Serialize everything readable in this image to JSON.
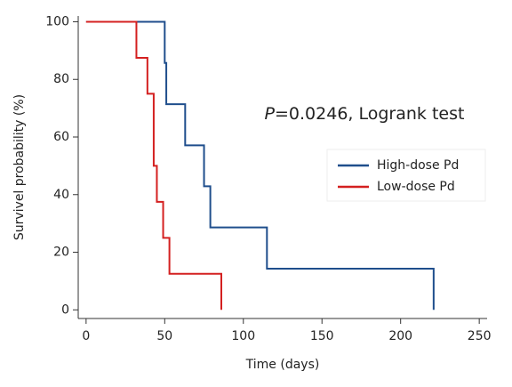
{
  "chart_data": {
    "type": "step",
    "annotation": {
      "italic": "P",
      "text": "=0.0246, Logrank test"
    },
    "xlabel": "Time (days)",
    "ylabel": "Survivel probability (%)",
    "xlim": [
      -5,
      255
    ],
    "xticks": [
      0,
      50,
      100,
      150,
      200,
      250
    ],
    "ylim": [
      -3,
      102
    ],
    "yticks": [
      0,
      20,
      40,
      60,
      80,
      100
    ],
    "legend": "right",
    "series": [
      {
        "name": "High-dose Pd",
        "color": "#1f4e8c",
        "x": [
          0,
          50,
          51,
          63,
          75,
          79,
          115,
          221
        ],
        "values": [
          100,
          85.7,
          71.4,
          57.1,
          42.9,
          28.6,
          14.3,
          0
        ]
      },
      {
        "name": "Low-dose Pd",
        "color": "#d42020",
        "x": [
          0,
          32,
          39,
          43,
          45,
          49,
          53,
          86
        ],
        "values": [
          100,
          87.5,
          75,
          50,
          37.5,
          25,
          12.5,
          0
        ]
      }
    ]
  }
}
